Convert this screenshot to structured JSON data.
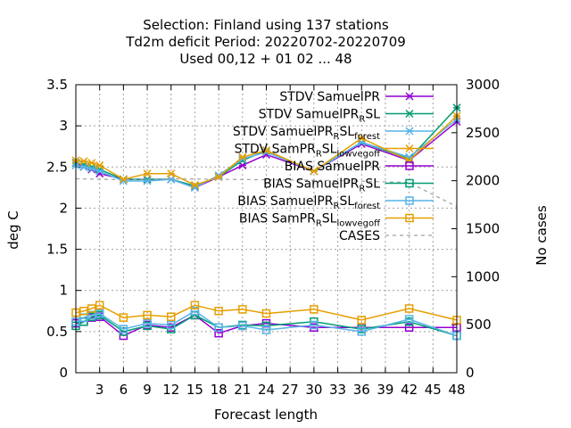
{
  "chart_data": {
    "type": "line",
    "title_lines": [
      "Selection: Finland using   137 stations",
      "Td2m deficit   Period: 20220702-20220709",
      "Used  00,12  + 01 02 ... 48"
    ],
    "xlabel": "Forecast length",
    "ylabel": "deg C",
    "y2label": "No cases",
    "xlim": [
      0,
      48
    ],
    "ylim": [
      0,
      3.5
    ],
    "y2lim": [
      0,
      3000
    ],
    "x_ticks": [
      "3",
      "6",
      "9",
      "12",
      "15",
      "18",
      "21",
      "24",
      "27",
      "30",
      "33",
      "36",
      "39",
      "42",
      "45",
      "48"
    ],
    "y_ticks": [
      "0",
      "0.5",
      "1",
      "1.5",
      "2",
      "2.5",
      "3",
      "3.5"
    ],
    "y2_ticks": [
      "0",
      "500",
      "1000",
      "1500",
      "2000",
      "2500",
      "3000"
    ],
    "grid": true,
    "legend_position": "top-right",
    "x": [
      0,
      1,
      2,
      3,
      6,
      9,
      12,
      15,
      18,
      21,
      24,
      30,
      36,
      42,
      48
    ],
    "series": [
      {
        "name": "STDV SamuelPR",
        "name_parts": [
          [
            "STDV SamuelPR",
            ""
          ]
        ],
        "axis": "y",
        "color": "#9400d3",
        "marker": "x",
        "values": [
          2.55,
          2.5,
          2.47,
          2.42,
          2.35,
          2.35,
          2.35,
          2.25,
          2.38,
          2.52,
          2.65,
          2.45,
          2.78,
          2.58,
          3.05
        ]
      },
      {
        "name": "STDV SamuelPR_RSL",
        "name_parts": [
          [
            "STDV SamuelPR",
            ""
          ],
          [
            "R",
            "sub"
          ],
          [
            "SL",
            ""
          ]
        ],
        "axis": "y",
        "color": "#009e73",
        "marker": "x",
        "values": [
          2.55,
          2.53,
          2.5,
          2.47,
          2.35,
          2.35,
          2.35,
          2.27,
          2.38,
          2.58,
          2.7,
          2.45,
          2.8,
          2.6,
          3.22
        ]
      },
      {
        "name": "STDV SamuelPR_RSL_forest",
        "name_parts": [
          [
            "STDV SamuelPR",
            ""
          ],
          [
            "R",
            "sub"
          ],
          [
            "SL",
            ""
          ],
          [
            "forest",
            "sub"
          ]
        ],
        "axis": "y",
        "color": "#56b4e9",
        "marker": "x",
        "values": [
          2.52,
          2.5,
          2.48,
          2.45,
          2.33,
          2.33,
          2.35,
          2.25,
          2.4,
          2.6,
          2.68,
          2.45,
          2.8,
          2.62,
          3.08
        ]
      },
      {
        "name": "STDV SamPR_RSL_lowvegoff",
        "name_parts": [
          [
            "STDV SamPR",
            ""
          ],
          [
            "R",
            "sub"
          ],
          [
            "SL",
            ""
          ],
          [
            "lowvegoff",
            "sub"
          ]
        ],
        "axis": "y",
        "color": "#e69f00",
        "marker": "x",
        "values": [
          2.58,
          2.57,
          2.55,
          2.52,
          2.35,
          2.42,
          2.42,
          2.28,
          2.38,
          2.62,
          2.7,
          2.45,
          2.85,
          2.58,
          3.12
        ]
      },
      {
        "name": "BIAS SamuelPR",
        "name_parts": [
          [
            "BIAS SamuelPR",
            ""
          ]
        ],
        "axis": "y",
        "color": "#9400d3",
        "marker": "sq",
        "values": [
          0.6,
          0.62,
          0.67,
          0.68,
          0.45,
          0.58,
          0.55,
          0.7,
          0.48,
          0.57,
          0.6,
          0.55,
          0.55,
          0.55,
          0.55
        ]
      },
      {
        "name": "BIAS SamuelPR_RSL",
        "name_parts": [
          [
            "BIAS SamuelPR",
            ""
          ],
          [
            "R",
            "sub"
          ],
          [
            "SL",
            ""
          ]
        ],
        "axis": "y",
        "color": "#009e73",
        "marker": "sq",
        "values": [
          0.57,
          0.62,
          0.68,
          0.7,
          0.5,
          0.57,
          0.53,
          0.7,
          0.55,
          0.58,
          0.57,
          0.62,
          0.53,
          0.62,
          0.45
        ]
      },
      {
        "name": "BIAS SamuelPR_RSL_forest",
        "name_parts": [
          [
            "BIAS SamuelPR",
            ""
          ],
          [
            "R",
            "sub"
          ],
          [
            "SL",
            ""
          ],
          [
            "forest",
            "sub"
          ]
        ],
        "axis": "y",
        "color": "#56b4e9",
        "marker": "sq",
        "values": [
          0.62,
          0.67,
          0.7,
          0.72,
          0.53,
          0.6,
          0.58,
          0.75,
          0.55,
          0.57,
          0.52,
          0.58,
          0.5,
          0.65,
          0.45
        ]
      },
      {
        "name": "BIAS SamPR_RSL_lowvegoff",
        "name_parts": [
          [
            "BIAS SamPR",
            ""
          ],
          [
            "R",
            "sub"
          ],
          [
            "SL",
            ""
          ],
          [
            "lowvegoff",
            "sub"
          ]
        ],
        "axis": "y",
        "color": "#e69f00",
        "marker": "sq",
        "values": [
          0.73,
          0.75,
          0.78,
          0.82,
          0.67,
          0.7,
          0.68,
          0.82,
          0.75,
          0.77,
          0.72,
          0.77,
          0.64,
          0.78,
          0.64
        ]
      },
      {
        "name": "CASES",
        "name_parts": [
          [
            "CASES",
            ""
          ]
        ],
        "axis": "y2",
        "color": "#a0a0a0",
        "marker": "none",
        "dashed": true,
        "x": [
          0,
          6,
          12,
          18,
          24,
          30,
          36,
          42,
          48
        ],
        "values": [
          2020,
          2010,
          2020,
          2015,
          2010,
          2005,
          1995,
          1980,
          1730
        ]
      }
    ]
  }
}
